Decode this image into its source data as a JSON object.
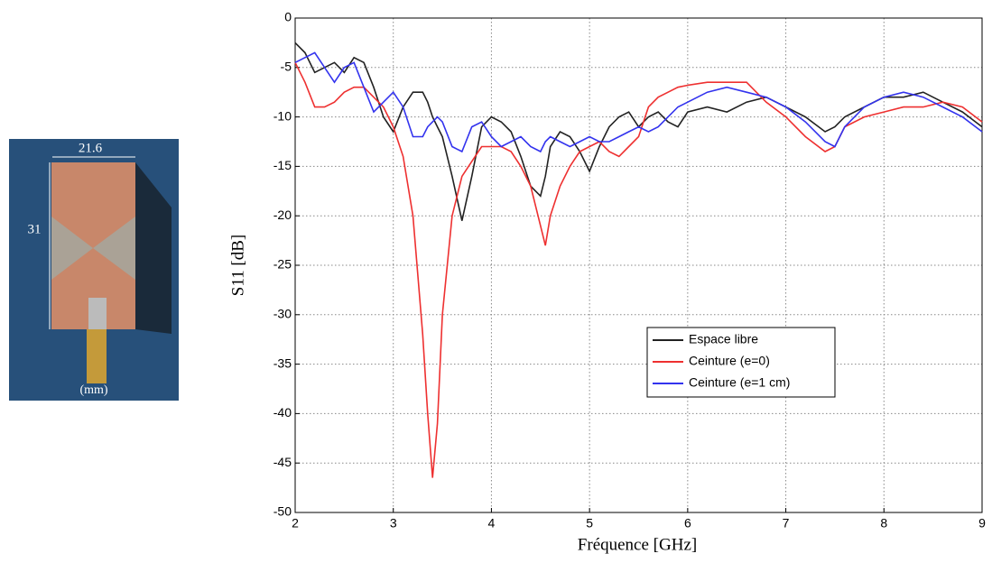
{
  "chart_data": {
    "type": "line",
    "x_label": "Fréquence [GHz]",
    "y_label": "S11 [dB]",
    "annotations": [
      "21.6",
      "31",
      "(mm)"
    ],
    "x": [
      2.0,
      2.1,
      2.2,
      2.3,
      2.4,
      2.5,
      2.6,
      2.7,
      2.8,
      2.9,
      3.0,
      3.1,
      3.2,
      3.3,
      3.35,
      3.4,
      3.45,
      3.5,
      3.6,
      3.7,
      3.8,
      3.9,
      4.0,
      4.1,
      4.2,
      4.3,
      4.4,
      4.5,
      4.55,
      4.6,
      4.7,
      4.8,
      4.9,
      5.0,
      5.1,
      5.2,
      5.3,
      5.4,
      5.5,
      5.6,
      5.7,
      5.8,
      5.9,
      6.0,
      6.2,
      6.4,
      6.6,
      6.8,
      7.0,
      7.2,
      7.4,
      7.5,
      7.6,
      7.8,
      8.0,
      8.2,
      8.4,
      8.6,
      8.8,
      9.0
    ],
    "series": [
      {
        "name": "Espace libre",
        "color": "#222222",
        "values": [
          -2.5,
          -3.5,
          -5.5,
          -5,
          -4.5,
          -5.5,
          -4,
          -4.5,
          -7,
          -10,
          -11.5,
          -9,
          -7.5,
          -7.5,
          -8.5,
          -10,
          -11,
          -12,
          -16,
          -20.5,
          -16,
          -11,
          -10,
          -10.5,
          -11.5,
          -14,
          -17,
          -18,
          -16,
          -13,
          -11.5,
          -12,
          -13.5,
          -15.5,
          -13,
          -11,
          -10,
          -9.5,
          -11,
          -10,
          -9.5,
          -10.5,
          -11,
          -9.5,
          -9,
          -9.5,
          -8.5,
          -8,
          -9,
          -10,
          -11.5,
          -11,
          -10,
          -9,
          -8,
          -8,
          -7.5,
          -8.5,
          -9.5,
          -11
        ]
      },
      {
        "name": "Ceinture (e=0)",
        "color": "#ee3030",
        "values": [
          -4.5,
          -6.5,
          -9,
          -9,
          -8.5,
          -7.5,
          -7,
          -7,
          -8,
          -9,
          -11,
          -14,
          -20,
          -32,
          -40,
          -46.5,
          -41,
          -30,
          -20,
          -16,
          -14.5,
          -13,
          -13,
          -13,
          -13.5,
          -15,
          -17,
          -21,
          -23,
          -20,
          -17,
          -15,
          -13.5,
          -13,
          -12.5,
          -13.5,
          -14,
          -13,
          -12,
          -9,
          -8,
          -7.5,
          -7,
          -6.8,
          -6.5,
          -6.5,
          -6.5,
          -8.5,
          -10,
          -12,
          -13.5,
          -13,
          -11,
          -10,
          -9.5,
          -9,
          -9,
          -8.5,
          -9,
          -10.5
        ]
      },
      {
        "name": "Ceinture (e=1 cm)",
        "color": "#3333ee",
        "values": [
          -4.5,
          -4,
          -3.5,
          -5,
          -6.5,
          -5,
          -4.5,
          -7,
          -9.5,
          -8.5,
          -7.5,
          -9,
          -12,
          -12,
          -11,
          -10.5,
          -10,
          -10.5,
          -13,
          -13.5,
          -11,
          -10.5,
          -12,
          -13,
          -12.5,
          -12,
          -13,
          -13.5,
          -12.5,
          -12,
          -12.5,
          -13,
          -12.5,
          -12,
          -12.5,
          -12.5,
          -12,
          -11.5,
          -11,
          -11.5,
          -11,
          -10,
          -9,
          -8.5,
          -7.5,
          -7,
          -7.5,
          -8,
          -9,
          -10.5,
          -12.5,
          -13,
          -11,
          -9,
          -8,
          -7.5,
          -8,
          -9,
          -10,
          -11.5
        ]
      }
    ],
    "xlim": [
      2,
      9
    ],
    "xticks": [
      2,
      3,
      4,
      5,
      6,
      7,
      8,
      9
    ],
    "ylim": [
      -50,
      0
    ],
    "yticks": [
      0,
      -5,
      -10,
      -15,
      -20,
      -25,
      -30,
      -35,
      -40,
      -45,
      -50
    ],
    "grid": true,
    "legend": "center"
  }
}
